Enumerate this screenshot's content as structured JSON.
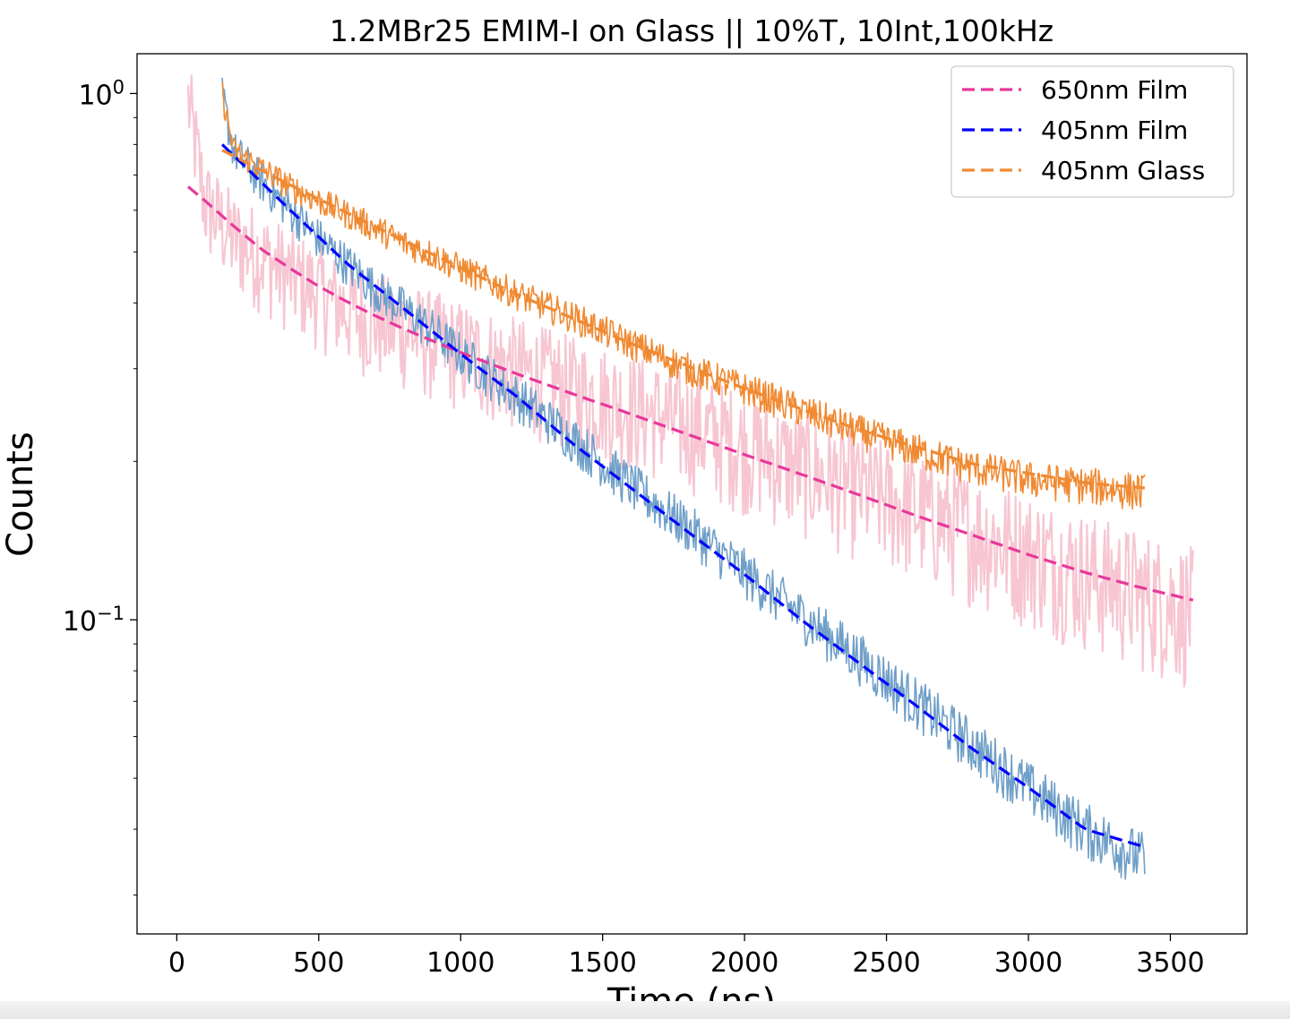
{
  "chart_data": {
    "type": "line",
    "title": "1.2MBr25 EMIM-I on Glass || 10%T, 10Int,100kHz",
    "xlabel": "Time (ns)",
    "ylabel": "Counts",
    "xlim": [
      -140,
      3770
    ],
    "ylim": [
      0.0253,
      1.19
    ],
    "yscale": "log",
    "x_ticks": [
      {
        "value": 0,
        "label": "0"
      },
      {
        "value": 500,
        "label": "500"
      },
      {
        "value": 1000,
        "label": "1000"
      },
      {
        "value": 1500,
        "label": "1500"
      },
      {
        "value": 2000,
        "label": "2000"
      },
      {
        "value": 2500,
        "label": "2500"
      },
      {
        "value": 3000,
        "label": "3000"
      },
      {
        "value": 3500,
        "label": "3500"
      }
    ],
    "y_ticks": [
      {
        "value": 1,
        "base": "10",
        "exp": "0"
      },
      {
        "value": 0.1,
        "base": "10",
        "exp": "−1"
      }
    ],
    "legend": {
      "position": "upper right",
      "entries": [
        {
          "label": "650nm Film",
          "color": "#e8389a",
          "style": "dashed"
        },
        {
          "label": "405nm Film",
          "color": "#0000ff",
          "style": "dashed"
        },
        {
          "label": "405nm Glass",
          "color": "#f08a32",
          "style": "dashed"
        }
      ]
    },
    "raw_series": [
      {
        "id": "650nm-film-data",
        "color": "#f7c6d2",
        "x": [
          40,
          100,
          200,
          300,
          400,
          500,
          600,
          700,
          800,
          900,
          1000,
          1200,
          1400,
          1600,
          1800,
          2000,
          2200,
          2400,
          2600,
          2800,
          3000,
          3200,
          3400,
          3580
        ],
        "y": [
          0.97,
          0.62,
          0.53,
          0.49,
          0.45,
          0.42,
          0.39,
          0.37,
          0.355,
          0.34,
          0.325,
          0.3,
          0.275,
          0.255,
          0.235,
          0.215,
          0.195,
          0.178,
          0.163,
          0.148,
          0.135,
          0.123,
          0.113,
          0.105
        ]
      },
      {
        "id": "405nm-film-data",
        "color": "#6f9fc8",
        "x": [
          160,
          200,
          300,
          400,
          500,
          600,
          700,
          800,
          900,
          1000,
          1200,
          1400,
          1600,
          1800,
          2000,
          2200,
          2400,
          2600,
          2800,
          3000,
          3200,
          3410
        ],
        "y": [
          0.99,
          0.78,
          0.68,
          0.6,
          0.53,
          0.475,
          0.425,
          0.39,
          0.355,
          0.32,
          0.265,
          0.22,
          0.18,
          0.15,
          0.123,
          0.102,
          0.085,
          0.07,
          0.058,
          0.048,
          0.04,
          0.035
        ]
      },
      {
        "id": "405nm-glass-data",
        "color": "#f08a32",
        "x": [
          160,
          200,
          300,
          400,
          500,
          600,
          700,
          800,
          900,
          1000,
          1200,
          1400,
          1600,
          1800,
          2000,
          2200,
          2400,
          2600,
          2800,
          3000,
          3200,
          3410
        ],
        "y": [
          1.0,
          0.78,
          0.72,
          0.665,
          0.625,
          0.59,
          0.555,
          0.52,
          0.495,
          0.465,
          0.415,
          0.375,
          0.335,
          0.3,
          0.275,
          0.25,
          0.228,
          0.21,
          0.195,
          0.185,
          0.18,
          0.175
        ]
      }
    ],
    "fit_series": [
      {
        "label": "650nm Film",
        "color": "#e8389a",
        "x": [
          40,
          100,
          200,
          300,
          400,
          500,
          600,
          700,
          800,
          900,
          1000,
          1200,
          1400,
          1600,
          1800,
          2000,
          2200,
          2400,
          2600,
          2800,
          3000,
          3200,
          3400,
          3580
        ],
        "y": [
          0.665,
          0.625,
          0.56,
          0.505,
          0.465,
          0.43,
          0.402,
          0.378,
          0.357,
          0.339,
          0.322,
          0.293,
          0.268,
          0.246,
          0.225,
          0.206,
          0.189,
          0.173,
          0.158,
          0.145,
          0.133,
          0.123,
          0.115,
          0.109
        ]
      },
      {
        "label": "405nm Film",
        "color": "#0000ff",
        "x": [
          160,
          400,
          600,
          800,
          1000,
          1200,
          1400,
          1600,
          1800,
          2000,
          2200,
          2400,
          2600,
          2800,
          3000,
          3200,
          3410
        ],
        "y": [
          0.8,
          0.6,
          0.475,
          0.39,
          0.32,
          0.265,
          0.215,
          0.178,
          0.147,
          0.122,
          0.1,
          0.083,
          0.069,
          0.057,
          0.048,
          0.04,
          0.037
        ]
      },
      {
        "label": "405nm Glass",
        "color": "#f08a32",
        "x": [
          160,
          400,
          800,
          1200,
          1600,
          2000,
          2400,
          2800,
          3200,
          3410
        ],
        "y": [
          0.78,
          0.67,
          0.525,
          0.415,
          0.335,
          0.275,
          0.23,
          0.198,
          0.182,
          0.178
        ]
      }
    ]
  }
}
